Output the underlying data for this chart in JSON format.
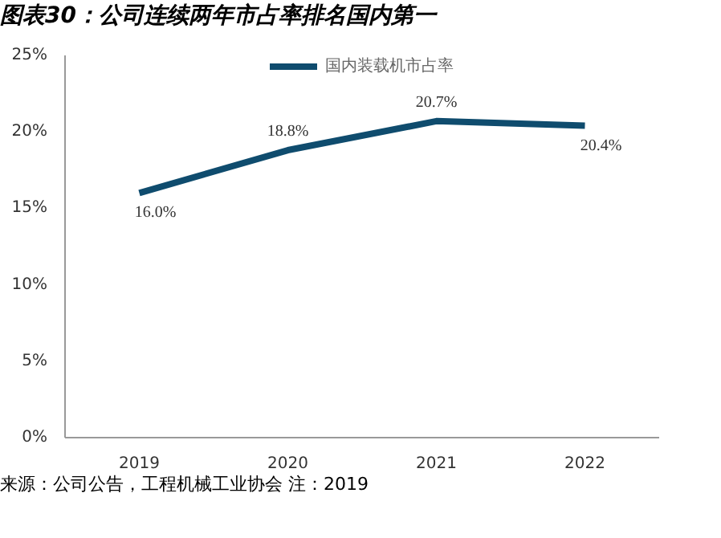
{
  "chart_data": {
    "type": "line",
    "title": "图表30：公司连续两年市占率排名国内第一",
    "categories": [
      "2019",
      "2020",
      "2021",
      "2022"
    ],
    "series": [
      {
        "name": "国内装载机市占率",
        "color": "#0f4c6e",
        "values": [
          16.0,
          18.8,
          20.7,
          20.4
        ],
        "value_labels": [
          "16.0%",
          "18.8%",
          "20.7%",
          "20.4%"
        ]
      }
    ],
    "ylim": [
      0,
      25
    ],
    "yticks": [
      {
        "value": 0,
        "label": "0%"
      },
      {
        "value": 5,
        "label": "5%"
      },
      {
        "value": 10,
        "label": "10%"
      },
      {
        "value": 15,
        "label": "15%"
      },
      {
        "value": 20,
        "label": "20%"
      },
      {
        "value": 25,
        "label": "25%"
      }
    ],
    "grid": false,
    "legend": "top",
    "marker": "none",
    "line_style": "solid",
    "annotations": [
      "来源：公司公告，工程机械工业协会 注：2019"
    ]
  }
}
